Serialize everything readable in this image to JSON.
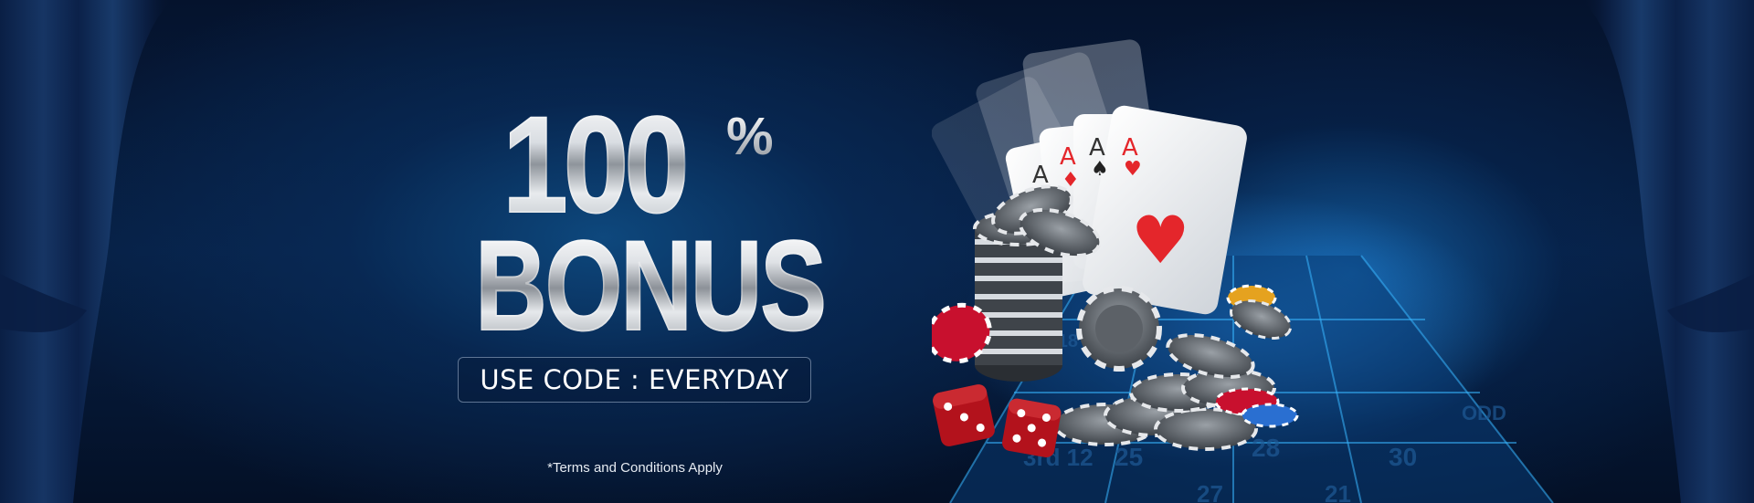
{
  "promo": {
    "amount": "100",
    "percent_symbol": "%",
    "title": "BONUS",
    "code_label": "USE CODE : EVERYDAY",
    "terms": "*Terms and Conditions Apply"
  },
  "illustration": {
    "cards": [
      "A",
      "A",
      "A",
      "A"
    ],
    "table_numbers": [
      "3rd 12",
      "25",
      "28",
      "30",
      "ODD",
      "1-18",
      "27",
      "21"
    ]
  },
  "colors": {
    "background": "#061a3a",
    "accent_blue": "#1f7fd1",
    "text": "#ffffff",
    "chip_red": "#c8102e",
    "dice_red": "#b3121c"
  },
  "icons": [
    "curtain-left-icon",
    "curtain-right-icon",
    "playing-cards-icon",
    "poker-chips-icon",
    "dice-icon",
    "roulette-table-icon"
  ]
}
